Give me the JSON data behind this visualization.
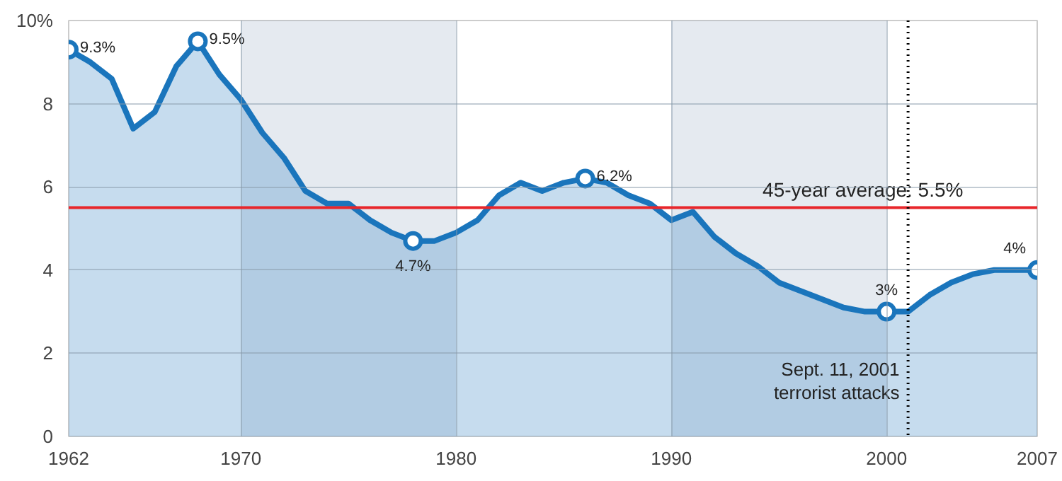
{
  "chart_data": {
    "type": "area",
    "x": [
      1962,
      1963,
      1964,
      1965,
      1966,
      1967,
      1968,
      1969,
      1970,
      1971,
      1972,
      1973,
      1974,
      1975,
      1976,
      1977,
      1978,
      1979,
      1980,
      1981,
      1982,
      1983,
      1984,
      1985,
      1986,
      1987,
      1988,
      1989,
      1990,
      1991,
      1992,
      1993,
      1994,
      1995,
      1996,
      1997,
      1998,
      1999,
      2000,
      2001,
      2002,
      2003,
      2004,
      2005,
      2006,
      2007
    ],
    "series": [
      {
        "color": "#1a75bc",
        "values": [
          9.3,
          9.0,
          8.6,
          7.4,
          7.8,
          8.9,
          9.5,
          8.7,
          8.1,
          7.3,
          6.7,
          5.9,
          5.6,
          5.6,
          5.2,
          4.9,
          4.7,
          4.7,
          4.9,
          5.2,
          5.8,
          6.1,
          5.9,
          6.1,
          6.2,
          6.1,
          5.8,
          5.6,
          5.2,
          5.4,
          4.8,
          4.4,
          4.1,
          3.7,
          3.5,
          3.3,
          3.1,
          3.0,
          3.0,
          3.0,
          3.4,
          3.7,
          3.9,
          4.0,
          4.0,
          4.0
        ]
      }
    ],
    "xlim": [
      1962,
      2007
    ],
    "xticks": [
      1962,
      1970,
      1980,
      1990,
      2000,
      2007
    ],
    "ylim": [
      0,
      10
    ],
    "yticks": [
      0,
      2,
      4,
      6,
      8,
      {
        "value": 10,
        "label": "10%"
      }
    ],
    "grid": true,
    "bands": [
      {
        "axis": "x",
        "from": 1970,
        "to": 1980,
        "color": "#7f95b5"
      },
      {
        "axis": "x",
        "from": 1990,
        "to": 2000,
        "color": "#7f95b5"
      }
    ],
    "ref_lines": [
      {
        "axis": "y",
        "value": 5.5,
        "label": "45-year average: 5.5%",
        "color": "#e8262b"
      },
      {
        "axis": "x",
        "value": 2001,
        "label": "Sept. 11, 2001\nterrorist attacks",
        "color": "#000000",
        "line_style": "dotted"
      }
    ],
    "annotations": [
      {
        "text": "9.3%",
        "x": 1962,
        "y": 9.3
      },
      {
        "text": "9.5%",
        "x": 1968,
        "y": 9.5
      },
      {
        "text": "4.7%",
        "x": 1978,
        "y": 4.7
      },
      {
        "text": "6.2%",
        "x": 1986,
        "y": 6.2
      },
      {
        "text": "3%",
        "x": 2000,
        "y": 3.0
      },
      {
        "text": "4%",
        "x": 2007,
        "y": 4.0
      }
    ]
  }
}
